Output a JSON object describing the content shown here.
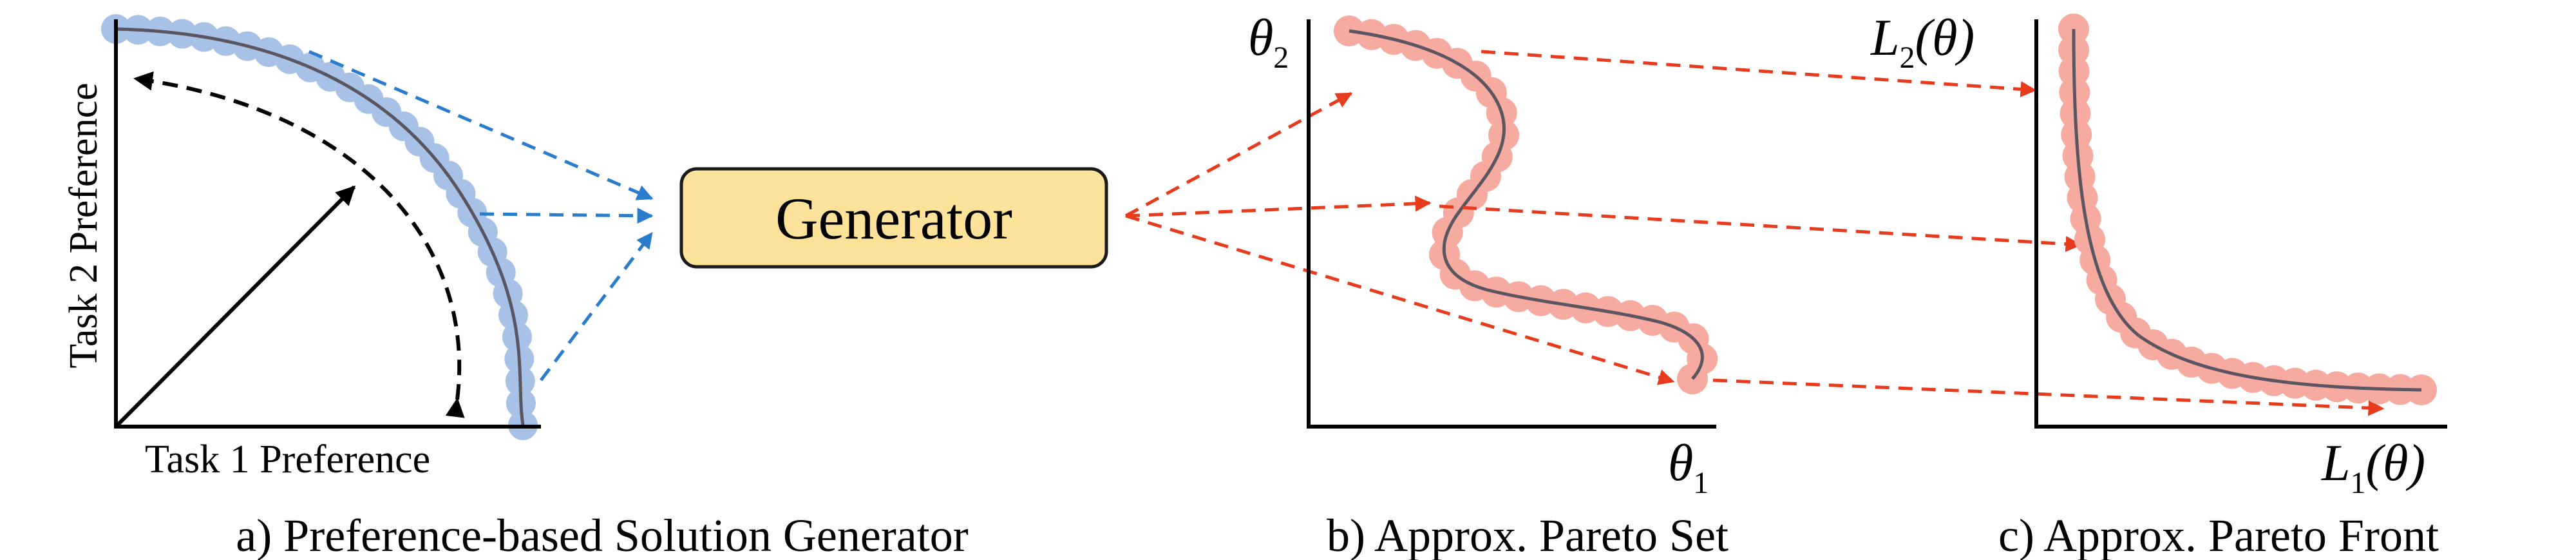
{
  "panel_a": {
    "caption": "a) Preference-based Solution Generator",
    "x_label": "Task 1 Preference",
    "y_label": "Task 2 Preference"
  },
  "generator": {
    "label": "Generator",
    "fill": "#fde29a"
  },
  "panel_b": {
    "caption": "b) Approx. Pareto Set",
    "x_label": {
      "base": "θ",
      "sub": "1"
    },
    "y_label": {
      "base": "θ",
      "sub": "2"
    }
  },
  "panel_c": {
    "caption": "c) Approx. Pareto Front",
    "x_label": {
      "base": "L",
      "sub": "1",
      "arg": "(θ)"
    },
    "y_label": {
      "base": "L",
      "sub": "2",
      "arg": "(θ)"
    }
  },
  "colors": {
    "preference_dots": "#a7c2e6",
    "solution_dots": "#f6aaa0",
    "curve": "#5a5560",
    "blue_arrow": "#2a7ccc",
    "red_arrow": "#e83a1c",
    "axis": "#000000"
  }
}
